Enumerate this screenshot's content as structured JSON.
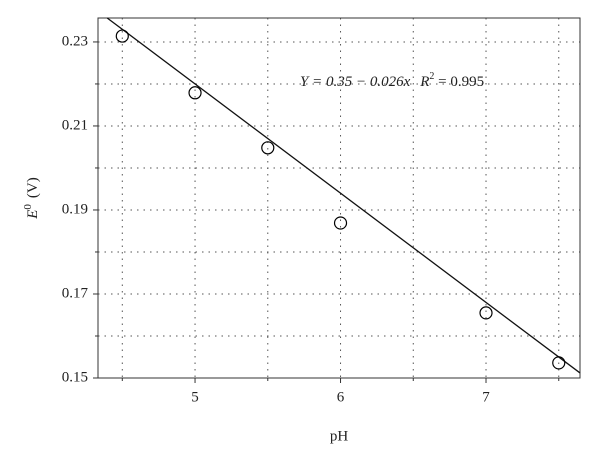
{
  "chart_data": {
    "type": "scatter",
    "x": [
      4.5,
      5,
      5.5,
      6,
      7,
      7.5
    ],
    "values": [
      0.2314,
      0.2179,
      0.2048,
      0.1869,
      0.1655,
      0.1536
    ],
    "color": "#000000",
    "xlabel": "pH",
    "ylabel": {
      "symbol": "E",
      "sup": "0",
      "unit": "(V)"
    },
    "xlim": [
      4.333,
      7.646
    ],
    "ylim": [
      0.15,
      0.2357
    ],
    "xticks": [
      5,
      6,
      7
    ],
    "yticks": [
      0.15,
      0.17,
      0.19,
      0.21,
      0.23
    ],
    "x_minor_ticks": [
      4.5,
      5.5,
      6.5,
      7.5
    ],
    "y_minor_ticks": [
      0.16,
      0.18,
      0.2,
      0.22
    ],
    "grid": true,
    "fit": {
      "intercept": 0.35,
      "slope": -0.026
    },
    "fit_label": "Y = 0.35 − 0.026x",
    "r2_label": {
      "prefix": "R",
      "sup": "2",
      "rest": " = 0.995"
    }
  }
}
